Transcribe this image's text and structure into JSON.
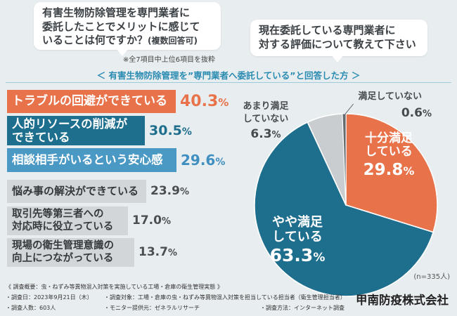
{
  "subtitle": "＜ 有害生物防除管理を”専門業者へ委託している”と回答した方 ＞",
  "bar_note": "※全7項目中上位6項目を抜粋",
  "chart_data": [
    {
      "type": "bar",
      "title_lines": [
        "有害生物防除管理を専門業者に",
        "委託したことでメリットに感じて",
        "いることは何ですか？"
      ],
      "title_note": "(複数回答可)",
      "categories": [
        "トラブルの回避ができている",
        "人的リソースの削減が\nできている",
        "相談相手がいるという安心感",
        "悩み事の解決ができている",
        "取引先等第三者への\n対応時に役立っている",
        "現場の衛生管理意識の\n向上につながっている"
      ],
      "values": [
        40.3,
        30.5,
        29.6,
        23.9,
        17.0,
        13.7
      ],
      "unit": "%",
      "bar_colors": [
        "#e8734a",
        "#1e6e8d",
        "#4a98c4",
        "#d3d6d9",
        "#d3d6d9",
        "#d3d6d9"
      ],
      "value_colors": [
        "#e8734a",
        "#1e6e8d",
        "#3f8fc0",
        "#4b4f53",
        "#4b4f53",
        "#4b4f53"
      ]
    },
    {
      "type": "pie",
      "title_lines": [
        "現在委託している専門業者に",
        "対する評価について教えて下さい"
      ],
      "categories": [
        "十分満足\nしている",
        "やや満足\nしている",
        "あまり満足\nしていない",
        "満足していない"
      ],
      "values": [
        29.8,
        63.3,
        6.3,
        0.6
      ],
      "unit": "%",
      "colors": [
        "#e8734a",
        "#1e6e8d",
        "#c9cdd0",
        "#666b6f"
      ],
      "sample_note": "(n=335人)"
    }
  ],
  "survey": {
    "heading": "《 調査概要：虫・ねずみ等異物混入対策を実施している工場・倉庫の衛生管理実態 》",
    "date": "・調査日：2023年9月21日（木）",
    "target": "・調査対象：工場・倉庫の虫・ねずみ等異物混入対策を担当している担当者（衛生管理担当者）",
    "count": "・調査人数：603人",
    "panel": "・モニター提供元：ゼネラルリサーチ",
    "method": "・調査方法：インターネット調査"
  },
  "company": "甲南防疫株式会社"
}
